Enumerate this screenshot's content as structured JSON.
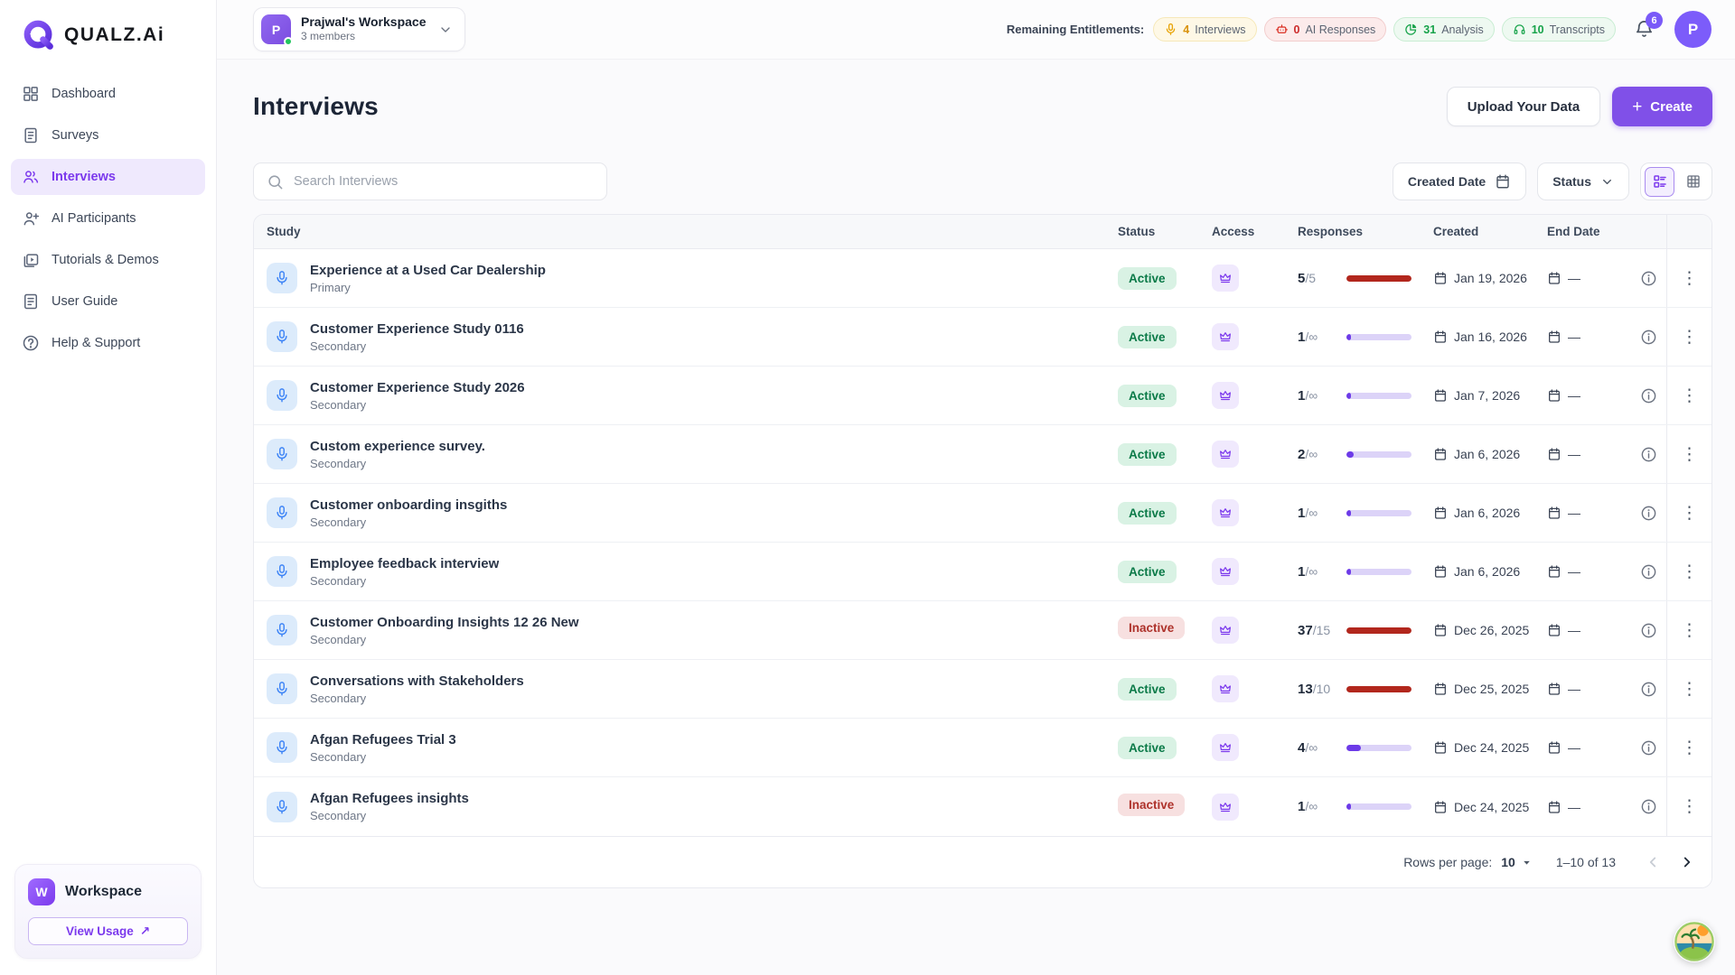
{
  "brand": {
    "name": "QUALZ.Ai"
  },
  "topbar": {
    "workspace": {
      "initial": "P",
      "name": "Prajwal's Workspace",
      "members": "3 members"
    },
    "entitlements_label": "Remaining Entitlements:",
    "entitlements": [
      {
        "icon": "mic-icon",
        "count": "4",
        "label": "Interviews",
        "theme": "amber"
      },
      {
        "icon": "robot-icon",
        "count": "0",
        "label": "AI Responses",
        "theme": "red"
      },
      {
        "icon": "pie-chart-icon",
        "count": "31",
        "label": "Analysis",
        "theme": "green"
      },
      {
        "icon": "transcript-icon",
        "count": "10",
        "label": "Transcripts",
        "theme": "green"
      }
    ],
    "notification_count": "6",
    "user_initial": "P"
  },
  "sidebar": {
    "items": [
      {
        "icon": "dashboard-icon",
        "label": "Dashboard",
        "active": false
      },
      {
        "icon": "surveys-icon",
        "label": "Surveys",
        "active": false
      },
      {
        "icon": "interviews-icon",
        "label": "Interviews",
        "active": true
      },
      {
        "icon": "ai-participants-icon",
        "label": "AI Participants",
        "active": false
      },
      {
        "icon": "tutorials-icon",
        "label": "Tutorials & Demos",
        "active": false
      },
      {
        "icon": "user-guide-icon",
        "label": "User Guide",
        "active": false
      },
      {
        "icon": "help-icon",
        "label": "Help & Support",
        "active": false
      }
    ],
    "workspace_card": {
      "initial": "W",
      "title": "Workspace",
      "button_label": "View Usage",
      "button_arrow": "↗"
    }
  },
  "page": {
    "title": "Interviews",
    "upload_button": "Upload Your Data",
    "create_button": "Create"
  },
  "filters": {
    "search_placeholder": "Search Interviews",
    "created_date_label": "Created Date",
    "status_label": "Status"
  },
  "table": {
    "headers": {
      "study": "Study",
      "status": "Status",
      "access": "Access",
      "responses": "Responses",
      "created": "Created",
      "end_date": "End Date"
    },
    "rows": [
      {
        "title": "Experience at a Used Car Dealership",
        "subtitle": "Primary",
        "status": "Active",
        "status_type": "active",
        "responses_current": "5",
        "responses_total": "/5",
        "progress_pct": 100,
        "progress_theme": "red",
        "created": "Jan 19, 2026",
        "end_date": "—"
      },
      {
        "title": "Customer Experience Study 0116",
        "subtitle": "Secondary",
        "status": "Active",
        "status_type": "active",
        "responses_current": "1",
        "responses_total": "/∞",
        "progress_pct": 7,
        "progress_theme": "purple",
        "created": "Jan 16, 2026",
        "end_date": "—"
      },
      {
        "title": "Customer Experience Study 2026",
        "subtitle": "Secondary",
        "status": "Active",
        "status_type": "active",
        "responses_current": "1",
        "responses_total": "/∞",
        "progress_pct": 7,
        "progress_theme": "purple",
        "created": "Jan 7, 2026",
        "end_date": "—"
      },
      {
        "title": "Custom experience survey.",
        "subtitle": "Secondary",
        "status": "Active",
        "status_type": "active",
        "responses_current": "2",
        "responses_total": "/∞",
        "progress_pct": 11,
        "progress_theme": "purple",
        "created": "Jan 6, 2026",
        "end_date": "—"
      },
      {
        "title": "Customer onboarding insgiths",
        "subtitle": "Secondary",
        "status": "Active",
        "status_type": "active",
        "responses_current": "1",
        "responses_total": "/∞",
        "progress_pct": 7,
        "progress_theme": "purple",
        "created": "Jan 6, 2026",
        "end_date": "—"
      },
      {
        "title": "Employee feedback interview",
        "subtitle": "Secondary",
        "status": "Active",
        "status_type": "active",
        "responses_current": "1",
        "responses_total": "/∞",
        "progress_pct": 7,
        "progress_theme": "purple",
        "created": "Jan 6, 2026",
        "end_date": "—"
      },
      {
        "title": "Customer Onboarding Insights 12 26 New",
        "subtitle": "Secondary",
        "status": "Inactive",
        "status_type": "inactive",
        "responses_current": "37",
        "responses_total": "/15",
        "progress_pct": 100,
        "progress_theme": "red",
        "created": "Dec 26, 2025",
        "end_date": "—"
      },
      {
        "title": "Conversations with Stakeholders",
        "subtitle": "Secondary",
        "status": "Active",
        "status_type": "active",
        "responses_current": "13",
        "responses_total": "/10",
        "progress_pct": 100,
        "progress_theme": "red",
        "created": "Dec 25, 2025",
        "end_date": "—"
      },
      {
        "title": "Afgan Refugees Trial 3",
        "subtitle": "Secondary",
        "status": "Active",
        "status_type": "active",
        "responses_current": "4",
        "responses_total": "/∞",
        "progress_pct": 22,
        "progress_theme": "purple",
        "created": "Dec 24, 2025",
        "end_date": "—"
      },
      {
        "title": "Afgan Refugees insights",
        "subtitle": "Secondary",
        "status": "Inactive",
        "status_type": "inactive",
        "responses_current": "1",
        "responses_total": "/∞",
        "progress_pct": 7,
        "progress_theme": "purple",
        "created": "Dec 24, 2025",
        "end_date": "—"
      }
    ]
  },
  "pagination": {
    "rows_per_page_label": "Rows per page:",
    "rows_per_page_value": "10",
    "range_text": "1–10 of 13"
  },
  "colors": {
    "accent": "#8050E8",
    "active_badge": "#0B7A48",
    "inactive_badge": "#AE322B",
    "progress_red": "#B2271D",
    "progress_purple": "#6D3BE8"
  }
}
